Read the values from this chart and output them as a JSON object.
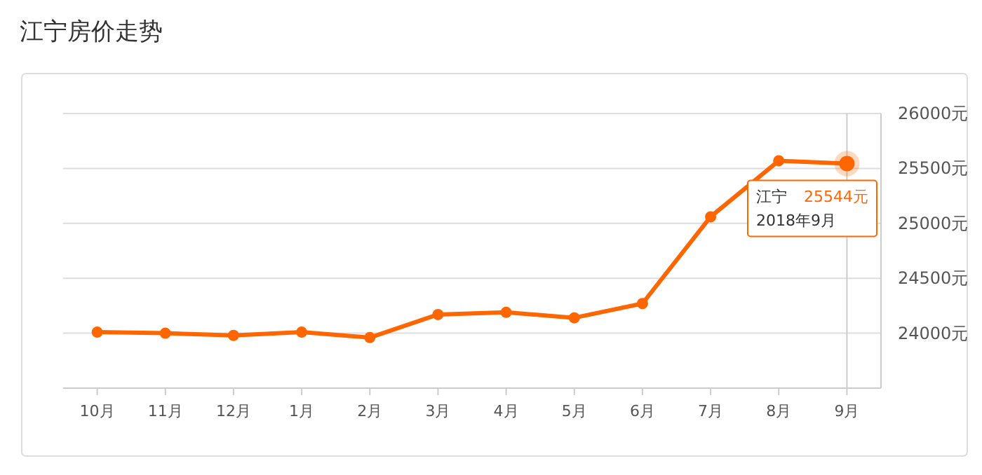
{
  "chart_data": {
    "type": "line",
    "title": "江宁房价走势",
    "categories": [
      "10月",
      "11月",
      "12月",
      "1月",
      "2月",
      "3月",
      "4月",
      "5月",
      "6月",
      "7月",
      "8月",
      "9月"
    ],
    "series": [
      {
        "name": "江宁",
        "color": "#ff6600",
        "values": [
          24010,
          24000,
          23980,
          24010,
          23960,
          24170,
          24190,
          24140,
          24270,
          25060,
          25570,
          25544
        ],
        "value_labels": [
          null,
          null,
          null,
          null,
          null,
          null,
          null,
          null,
          null,
          null,
          null,
          "25544元"
        ]
      }
    ],
    "ylim": [
      23500,
      26000
    ],
    "yticks": [
      {
        "value": 24000,
        "label": "24000元"
      },
      {
        "value": 24500,
        "label": "24500元"
      },
      {
        "value": 25000,
        "label": "25000元"
      },
      {
        "value": 25500,
        "label": "25500元"
      },
      {
        "value": 26000,
        "label": "26000元"
      }
    ],
    "grid": "y",
    "marker": "circle",
    "line_style": "solid",
    "ref_lines": [
      {
        "axis": "x",
        "value": "9月",
        "color": "#cccccc"
      }
    ],
    "annotations": [
      "2018年9月"
    ]
  }
}
